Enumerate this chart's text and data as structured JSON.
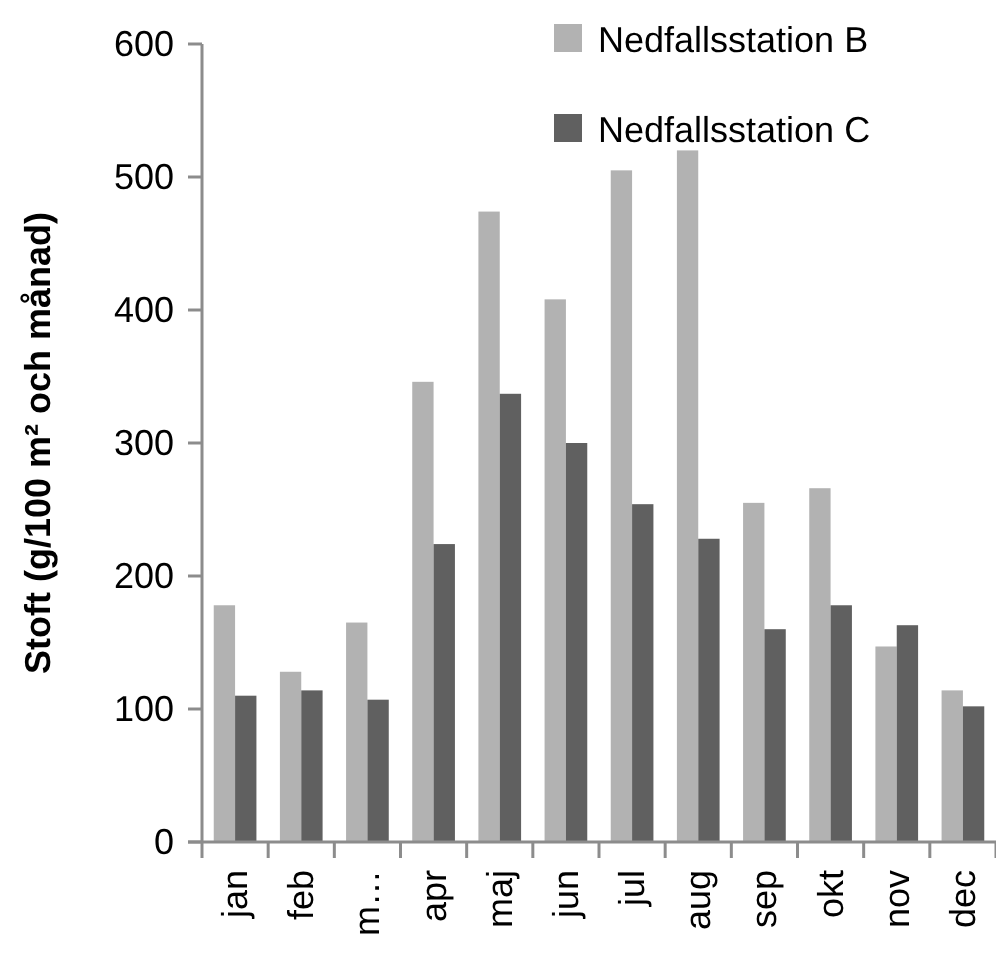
{
  "chart_data": {
    "type": "bar",
    "ylabel": "Stoft (g/100 m² och månad)",
    "categories": [
      "jan",
      "feb",
      "m…",
      "apr",
      "maj",
      "jun",
      "jul",
      "aug",
      "sep",
      "okt",
      "nov",
      "dec"
    ],
    "series": [
      {
        "name": "Nedfallsstation B",
        "color": "#b2b2b2",
        "values": [
          178,
          128,
          165,
          346,
          474,
          408,
          505,
          520,
          255,
          266,
          147,
          114
        ]
      },
      {
        "name": "Nedfallsstation C",
        "color": "#606060",
        "values": [
          110,
          114,
          107,
          224,
          337,
          300,
          254,
          228,
          160,
          178,
          163,
          102
        ]
      }
    ],
    "ylim": [
      0,
      600
    ],
    "yticks": [
      0,
      100,
      200,
      300,
      400,
      500,
      600
    ],
    "grid": false,
    "legend": "top right"
  }
}
